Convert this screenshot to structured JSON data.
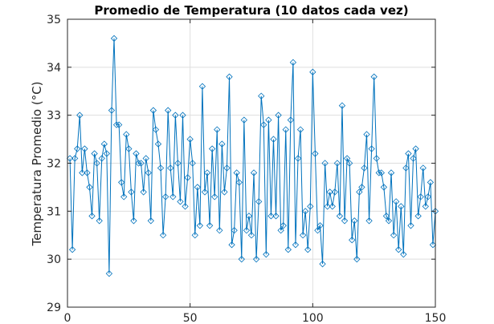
{
  "chart_data": {
    "type": "line",
    "title": "Promedio de Temperatura (10 datos cada vez)",
    "xlabel": "",
    "ylabel": "Temperatura Promedio (°C)",
    "xlim": [
      0,
      150
    ],
    "ylim": [
      29,
      35
    ],
    "xticks": [
      0,
      50,
      100,
      150
    ],
    "yticks": [
      29,
      30,
      31,
      32,
      33,
      34,
      35
    ],
    "grid": true,
    "marker": "diamond-open",
    "color": "#0072BD",
    "series": [
      {
        "x": [
          1,
          2,
          3,
          4,
          5,
          6,
          7,
          8,
          9,
          10,
          11,
          12,
          13,
          14,
          15,
          16,
          17,
          18,
          19,
          20,
          21,
          22,
          23,
          24,
          25,
          26,
          27,
          28,
          29,
          30,
          31,
          32,
          33,
          34,
          35,
          36,
          37,
          38,
          39,
          40,
          41,
          42,
          43,
          44,
          45,
          46,
          47,
          48,
          49,
          50,
          51,
          52,
          53,
          54,
          55,
          56,
          57,
          58,
          59,
          60,
          61,
          62,
          63,
          64,
          65,
          66,
          67,
          68,
          69,
          70,
          71,
          72,
          73,
          74,
          75,
          76,
          77,
          78,
          79,
          80,
          81,
          82,
          83,
          84,
          85,
          86,
          87,
          88,
          89,
          90,
          91,
          92,
          93,
          94,
          95,
          96,
          97,
          98,
          99,
          100,
          101,
          102,
          103,
          104,
          105,
          106,
          107,
          108,
          109,
          110,
          111,
          112,
          113,
          114,
          115,
          116,
          117,
          118,
          119,
          120,
          121,
          122,
          123,
          124,
          125,
          126,
          127,
          128,
          129,
          130,
          131,
          132,
          133,
          134,
          135,
          136,
          137,
          138,
          139,
          140,
          141,
          142,
          143,
          144,
          145,
          146,
          147,
          148,
          149,
          150
        ],
        "y": [
          32.1,
          30.2,
          32.1,
          32.3,
          33.0,
          31.8,
          32.3,
          31.8,
          31.5,
          30.9,
          32.2,
          32.0,
          30.8,
          32.1,
          32.4,
          32.2,
          29.7,
          33.1,
          34.6,
          32.8,
          32.8,
          31.6,
          31.3,
          32.6,
          32.3,
          31.4,
          30.8,
          32.2,
          32.0,
          32.0,
          31.4,
          32.1,
          31.8,
          30.8,
          33.1,
          32.7,
          32.4,
          31.9,
          30.5,
          31.3,
          33.1,
          31.9,
          31.3,
          33.0,
          32.0,
          31.2,
          33.0,
          31.1,
          31.7,
          32.5,
          32.0,
          30.5,
          31.5,
          30.7,
          33.6,
          31.4,
          31.8,
          30.7,
          32.3,
          31.3,
          32.7,
          30.6,
          32.4,
          31.4,
          31.9,
          33.8,
          30.3,
          30.6,
          31.8,
          31.6,
          30.0,
          32.9,
          30.6,
          30.9,
          30.5,
          31.8,
          30.0,
          31.2,
          33.4,
          32.8,
          30.1,
          32.9,
          30.9,
          32.5,
          30.9,
          33.0,
          30.6,
          30.7,
          32.7,
          30.2,
          32.9,
          34.1,
          30.3,
          32.1,
          32.7,
          30.5,
          31.0,
          30.2,
          31.1,
          33.9,
          32.2,
          30.6,
          30.7,
          29.9,
          32.0,
          31.1,
          31.4,
          31.1,
          31.4,
          32.0,
          30.9,
          33.2,
          30.8,
          32.1,
          32.0,
          30.4,
          30.8,
          30.0,
          31.4,
          31.5,
          31.9,
          32.6,
          30.8,
          32.3,
          33.8,
          32.1,
          31.8,
          31.8,
          31.5,
          30.9,
          30.8,
          31.8,
          30.5,
          31.2,
          30.2,
          31.1,
          30.1,
          31.9,
          32.2,
          30.7,
          32.1,
          32.3,
          30.9,
          31.3,
          31.9,
          31.1,
          31.3,
          31.6,
          30.3,
          31.0
        ]
      }
    ]
  }
}
